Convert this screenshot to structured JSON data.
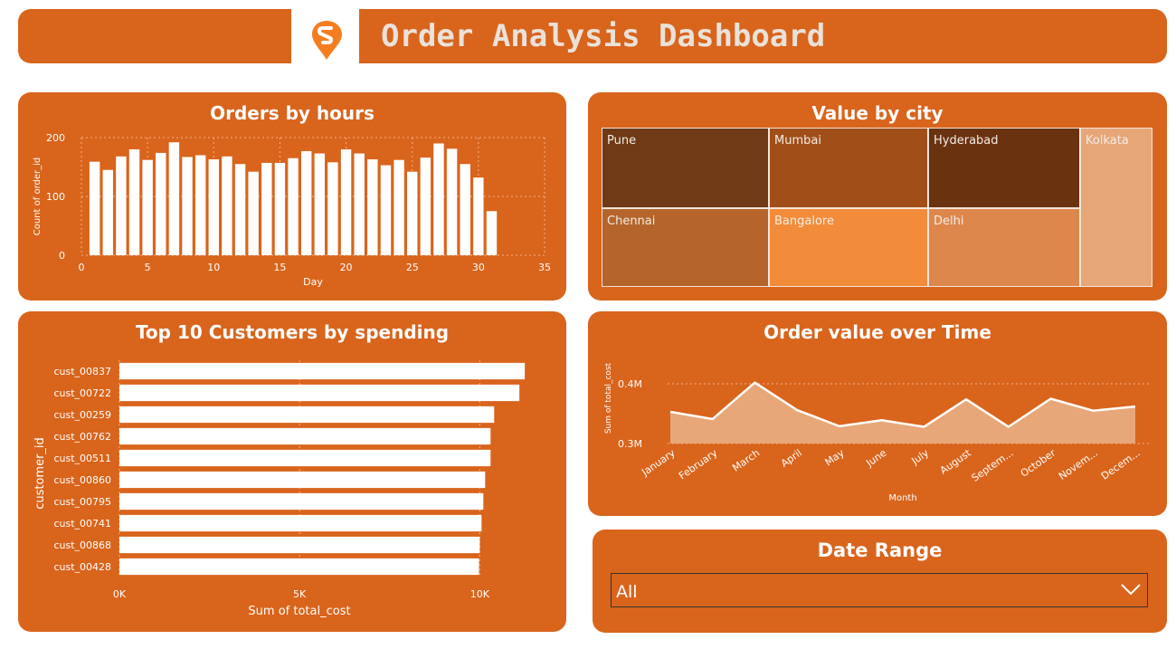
{
  "header": {
    "title": "Order Analysis Dashboard",
    "logo_icon": "swiggy-logo-icon"
  },
  "colors": {
    "panel": "#d9641c",
    "logo": "#f47d20",
    "title_text": "#eae2da"
  },
  "orders_by_hours": {
    "title": "Orders by hours",
    "chart_data": {
      "type": "bar",
      "x": [
        1,
        2,
        3,
        4,
        5,
        6,
        7,
        8,
        9,
        10,
        11,
        12,
        13,
        14,
        15,
        16,
        17,
        18,
        19,
        20,
        21,
        22,
        23,
        24,
        25,
        26,
        27,
        28,
        29,
        30,
        31
      ],
      "values": [
        159,
        145,
        168,
        180,
        162,
        174,
        192,
        167,
        170,
        163,
        168,
        155,
        142,
        157,
        157,
        165,
        177,
        173,
        158,
        180,
        173,
        163,
        153,
        162,
        142,
        166,
        190,
        181,
        155,
        132,
        75
      ],
      "xlabel": "Day",
      "ylabel": "Count of order_id",
      "xlim": [
        0,
        35
      ],
      "ylim": [
        0,
        200
      ],
      "x_ticks": [
        "0",
        "5",
        "10",
        "15",
        "20",
        "25",
        "30",
        "35"
      ],
      "y_ticks": [
        "0",
        "100",
        "200"
      ],
      "grid": true
    }
  },
  "value_by_city": {
    "title": "Value by city",
    "chart_data": {
      "type": "treemap",
      "categories": [
        "Pune",
        "Mumbai",
        "Hyderabad",
        "Kolkata",
        "Chennai",
        "Bangalore",
        "Delhi"
      ]
    }
  },
  "top_customers": {
    "title": "Top 10 Customers by spending",
    "chart_data": {
      "type": "bar",
      "orientation": "horizontal",
      "categories": [
        "cust_00837",
        "cust_00722",
        "cust_00259",
        "cust_00762",
        "cust_00511",
        "cust_00860",
        "cust_00795",
        "cust_00741",
        "cust_00868",
        "cust_00428"
      ],
      "values": [
        11250,
        11100,
        10400,
        10300,
        10300,
        10150,
        10100,
        10050,
        10000,
        9980
      ],
      "xlabel": "Sum of total_cost",
      "ylabel": "customer_id",
      "xlim": [
        0,
        12000
      ],
      "x_ticks": [
        "0K",
        "5K",
        "10K"
      ],
      "grid": true
    }
  },
  "order_value": {
    "title": "Order value over Time",
    "chart_data": {
      "type": "area",
      "categories": [
        "January",
        "February",
        "March",
        "April",
        "May",
        "June",
        "July",
        "August",
        "Septem...",
        "October",
        "Novem...",
        "Decem..."
      ],
      "values": [
        0.353,
        0.341,
        0.402,
        0.356,
        0.329,
        0.339,
        0.328,
        0.374,
        0.328,
        0.375,
        0.355,
        0.362
      ],
      "xlabel": "Month",
      "ylabel": "Sum of total_cost",
      "y_ticks": [
        "0.3M",
        "0.4M"
      ],
      "ylim": [
        0.3,
        0.4
      ],
      "units": "M",
      "grid": true
    }
  },
  "date_range": {
    "title": "Date Range",
    "selected": "All"
  }
}
